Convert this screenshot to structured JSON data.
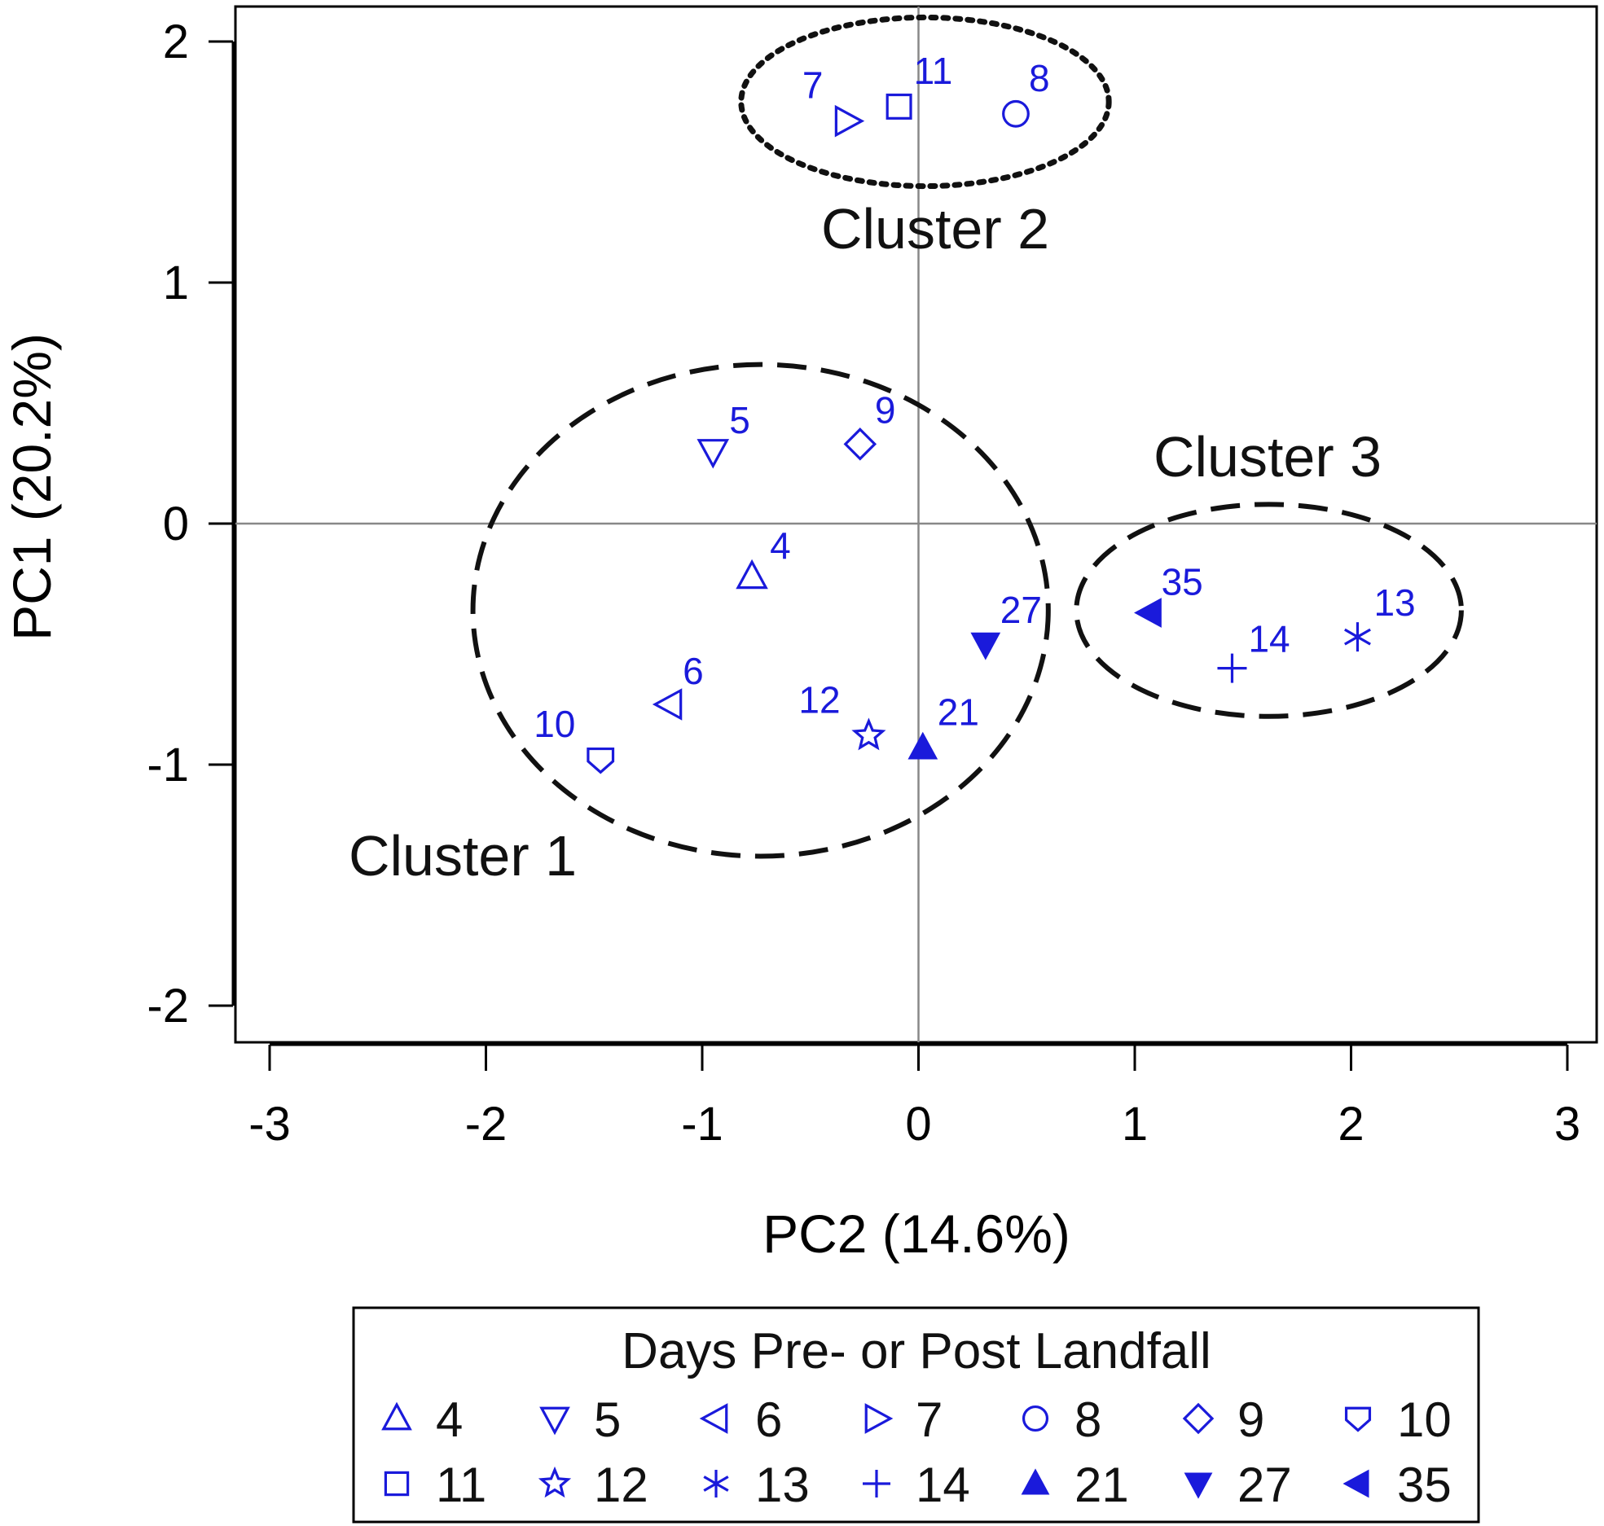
{
  "chart_data": {
    "type": "scatter",
    "title": "",
    "xlabel": "PC2 (14.6%)",
    "ylabel": "PC1 (20.2%)",
    "xlim": [
      -3.15,
      3.15
    ],
    "ylim": [
      -2.2,
      2.15
    ],
    "x_ticks": [
      -3,
      -2,
      -1,
      0,
      1,
      2,
      3
    ],
    "y_ticks": [
      -2,
      -1,
      0,
      1,
      2
    ],
    "x_tick_labels": [
      "-3",
      "-2",
      "-1",
      "0",
      "1",
      "2",
      "3"
    ],
    "y_tick_labels": [
      "-2",
      "-1",
      "0",
      "1",
      "2"
    ],
    "reference_lines": {
      "x": 0,
      "y": 0
    },
    "grid": false,
    "marker_color": "#1a1adb",
    "points": [
      {
        "label": "4",
        "x": -0.77,
        "y": -0.22,
        "marker": "triangle-up"
      },
      {
        "label": "5",
        "x": -0.95,
        "y": 0.3,
        "marker": "triangle-down"
      },
      {
        "label": "6",
        "x": -1.15,
        "y": -0.75,
        "marker": "triangle-left"
      },
      {
        "label": "7",
        "x": -0.33,
        "y": 1.67,
        "marker": "triangle-right"
      },
      {
        "label": "8",
        "x": 0.45,
        "y": 1.7,
        "marker": "circle"
      },
      {
        "label": "9",
        "x": -0.27,
        "y": 0.33,
        "marker": "diamond"
      },
      {
        "label": "10",
        "x": -1.47,
        "y": -0.98,
        "marker": "shield"
      },
      {
        "label": "11",
        "x": -0.09,
        "y": 1.73,
        "marker": "square"
      },
      {
        "label": "12",
        "x": -0.23,
        "y": -0.88,
        "marker": "star"
      },
      {
        "label": "13",
        "x": 2.03,
        "y": -0.47,
        "marker": "asterisk"
      },
      {
        "label": "14",
        "x": 1.45,
        "y": -0.6,
        "marker": "plus"
      },
      {
        "label": "21",
        "x": 0.02,
        "y": -0.93,
        "marker": "triangle-up-filled"
      },
      {
        "label": "27",
        "x": 0.31,
        "y": -0.5,
        "marker": "triangle-down-filled"
      },
      {
        "label": "35",
        "x": 1.07,
        "y": -0.37,
        "marker": "triangle-left-filled"
      }
    ],
    "clusters": [
      {
        "name": "Cluster 1",
        "cx": -0.73,
        "cy": -0.36,
        "rx": 1.33,
        "ry": 1.02,
        "style": "dashed"
      },
      {
        "name": "Cluster 2",
        "cx": 0.03,
        "cy": 1.75,
        "rx": 0.85,
        "ry": 0.35,
        "style": "dotted"
      },
      {
        "name": "Cluster 3",
        "cx": 1.62,
        "cy": -0.36,
        "rx": 0.89,
        "ry": 0.44,
        "style": "dashed"
      }
    ],
    "legend": {
      "title": "Days Pre- or Post Landfall",
      "placement": "bottom",
      "rows": [
        [
          {
            "label": "4",
            "marker": "triangle-up"
          },
          {
            "label": "5",
            "marker": "triangle-down"
          },
          {
            "label": "6",
            "marker": "triangle-left"
          },
          {
            "label": "7",
            "marker": "triangle-right"
          },
          {
            "label": "8",
            "marker": "circle"
          },
          {
            "label": "9",
            "marker": "diamond"
          },
          {
            "label": "10",
            "marker": "shield"
          }
        ],
        [
          {
            "label": "11",
            "marker": "square"
          },
          {
            "label": "12",
            "marker": "star"
          },
          {
            "label": "13",
            "marker": "asterisk"
          },
          {
            "label": "14",
            "marker": "plus"
          },
          {
            "label": "21",
            "marker": "triangle-up-filled"
          },
          {
            "label": "27",
            "marker": "triangle-down-filled"
          },
          {
            "label": "35",
            "marker": "triangle-left-filled"
          }
        ]
      ]
    }
  }
}
